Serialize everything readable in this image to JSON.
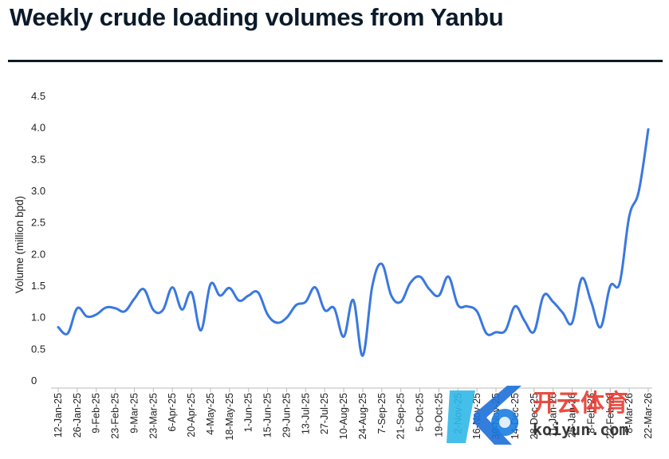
{
  "chart_data": {
    "type": "line",
    "title": "Weekly crude loading volumes from Yanbu",
    "ylabel": "Volume (million bpd)",
    "xlabel": "",
    "ylim": [
      0,
      4.5
    ],
    "yticks": [
      "0",
      "0.5",
      "1.0",
      "1.5",
      "2.0",
      "2.5",
      "3.0",
      "3.5",
      "4.0",
      "4.5"
    ],
    "grid": false,
    "legend": "none",
    "x_tick_labels": [
      "12-Jan-25",
      "26-Jan-25",
      "9-Feb-25",
      "23-Feb-25",
      "9-Mar-25",
      "23-Mar-25",
      "6-Apr-25",
      "20-Apr-25",
      "4-May-25",
      "18-May-25",
      "1-Jun-25",
      "15-Jun-25",
      "29-Jun-25",
      "13-Jul-25",
      "27-Jul-25",
      "10-Aug-25",
      "24-Aug-25",
      "7-Sep-25",
      "21-Sep-25",
      "5-Oct-25",
      "19-Oct-25",
      "2-Nov-25",
      "16-Nov-25",
      "30-Nov-25",
      "14-Dec-25",
      "28-Dec-25",
      "11-Jan-26",
      "25-Jan-26",
      "8-Feb-26",
      "22-Feb-26",
      "8-Mar-26",
      "22-Mar-26"
    ],
    "series": [
      {
        "color": "#3a78e0",
        "x": [
          "12-Jan-25",
          "19-Jan-25",
          "26-Jan-25",
          "2-Feb-25",
          "9-Feb-25",
          "16-Feb-25",
          "23-Feb-25",
          "2-Mar-25",
          "9-Mar-25",
          "16-Mar-25",
          "23-Mar-25",
          "30-Mar-25",
          "6-Apr-25",
          "13-Apr-25",
          "20-Apr-25",
          "27-Apr-25",
          "4-May-25",
          "11-May-25",
          "18-May-25",
          "25-May-25",
          "1-Jun-25",
          "8-Jun-25",
          "15-Jun-25",
          "22-Jun-25",
          "29-Jun-25",
          "6-Jul-25",
          "13-Jul-25",
          "20-Jul-25",
          "27-Jul-25",
          "3-Aug-25",
          "10-Aug-25",
          "17-Aug-25",
          "24-Aug-25",
          "31-Aug-25",
          "7-Sep-25",
          "14-Sep-25",
          "21-Sep-25",
          "28-Sep-25",
          "5-Oct-25",
          "12-Oct-25",
          "19-Oct-25",
          "26-Oct-25",
          "2-Nov-25",
          "9-Nov-25",
          "16-Nov-25",
          "23-Nov-25",
          "30-Nov-25",
          "7-Dec-25",
          "14-Dec-25",
          "21-Dec-25",
          "28-Dec-25",
          "4-Jan-26",
          "11-Jan-26",
          "18-Jan-26",
          "25-Jan-26",
          "1-Feb-26",
          "8-Feb-26",
          "15-Feb-26",
          "22-Feb-26",
          "1-Mar-26",
          "8-Mar-26",
          "15-Mar-26",
          "22-Mar-26"
        ],
        "values": [
          0.85,
          0.75,
          1.15,
          1.02,
          1.05,
          1.16,
          1.15,
          1.1,
          1.3,
          1.45,
          1.12,
          1.12,
          1.48,
          1.13,
          1.4,
          0.8,
          1.53,
          1.35,
          1.47,
          1.27,
          1.35,
          1.4,
          1.05,
          0.92,
          1.0,
          1.2,
          1.25,
          1.48,
          1.12,
          1.15,
          0.7,
          1.28,
          0.4,
          1.5,
          1.85,
          1.35,
          1.25,
          1.55,
          1.65,
          1.45,
          1.35,
          1.65,
          1.2,
          1.18,
          1.1,
          0.75,
          0.77,
          0.8,
          1.18,
          0.95,
          0.78,
          1.35,
          1.25,
          1.08,
          0.92,
          1.62,
          1.25,
          0.85,
          1.5,
          1.55,
          2.6,
          3.0,
          3.98
        ]
      }
    ]
  },
  "watermark": {
    "brand_cn": "开云体育",
    "brand_url": "koiyun.com"
  }
}
